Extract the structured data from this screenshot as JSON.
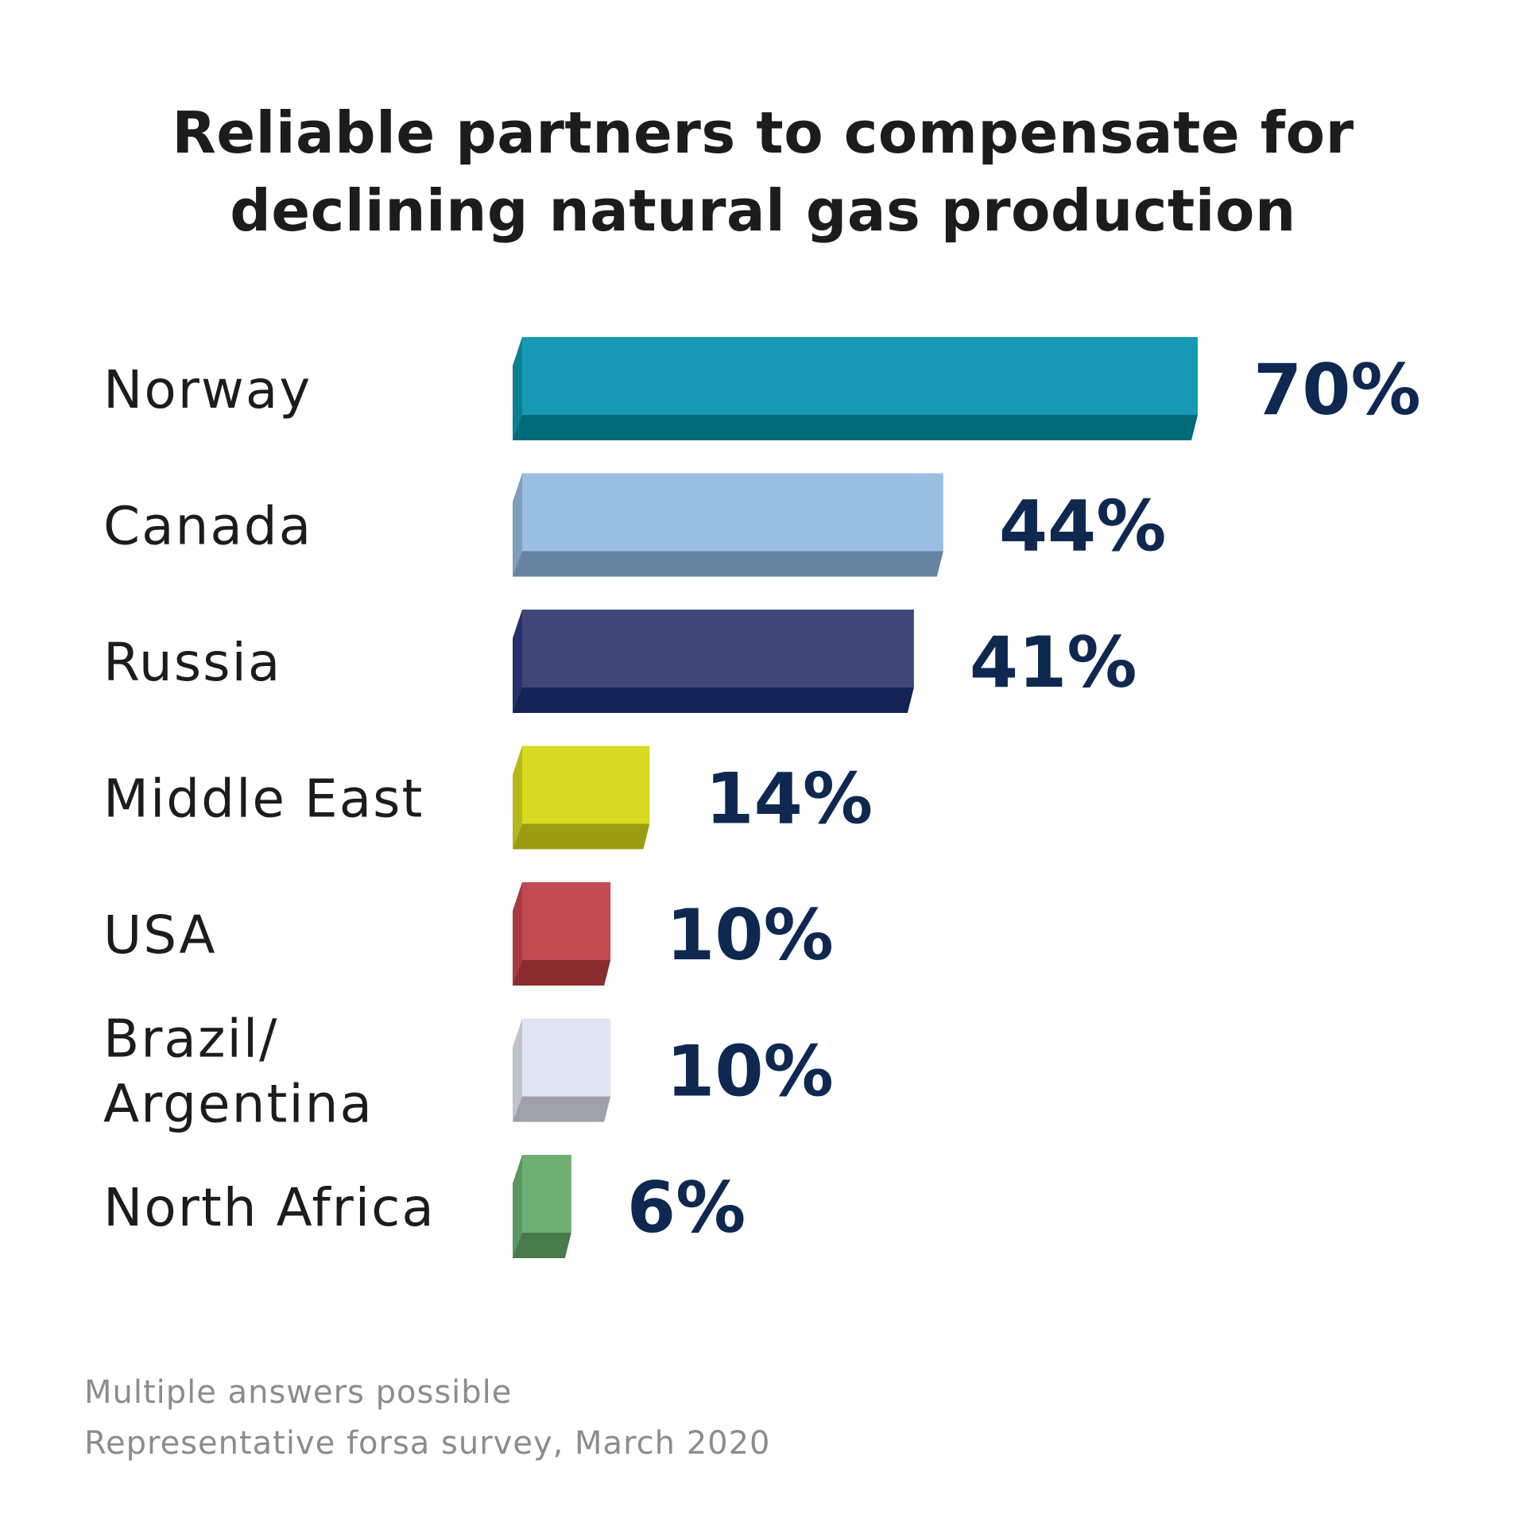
{
  "title_lines": [
    "Reliable partners to compensate for",
    "declining natural gas production"
  ],
  "footnotes": [
    "Multiple answers possible",
    "Representative forsa survey, March 2020"
  ],
  "chart_data": {
    "type": "bar",
    "orientation": "horizontal",
    "title": "Reliable partners to compensate for declining natural gas production",
    "xlabel": "",
    "ylabel": "",
    "unit": "%",
    "xlim": [
      0,
      70
    ],
    "grid": false,
    "legend": "none",
    "categories": [
      "Norway",
      "Canada",
      "Russia",
      "Middle East",
      "USA",
      "Brazil/\nArgentina",
      "North Africa"
    ],
    "values": [
      70,
      44,
      41,
      14,
      10,
      10,
      6
    ],
    "value_labels": [
      "70%",
      "44%",
      "41%",
      "14%",
      "10%",
      "10%",
      "6%"
    ],
    "colors": [
      {
        "face": "#169ab3",
        "bottom": "#006b78",
        "left": "#0c7f92"
      },
      {
        "face": "#9bbfe2",
        "bottom": "#6784a0",
        "left": "#7f9fc0"
      },
      {
        "face": "#3e4778",
        "bottom": "#142256",
        "left": "#27306a"
      },
      {
        "face": "#d8da22",
        "bottom": "#9c9c12",
        "left": "#b6b81a"
      },
      {
        "face": "#c24b52",
        "bottom": "#8a2b2e",
        "left": "#a63a40"
      },
      {
        "face": "#dfe6f1",
        "bottom": "#9ea1a8",
        "left": "#bfc3cc"
      },
      {
        "face": "#6faf73",
        "bottom": "#497a4c",
        "left": "#5a9660"
      }
    ],
    "label_color": "#1c1c1c",
    "value_color": "#0f2850"
  }
}
